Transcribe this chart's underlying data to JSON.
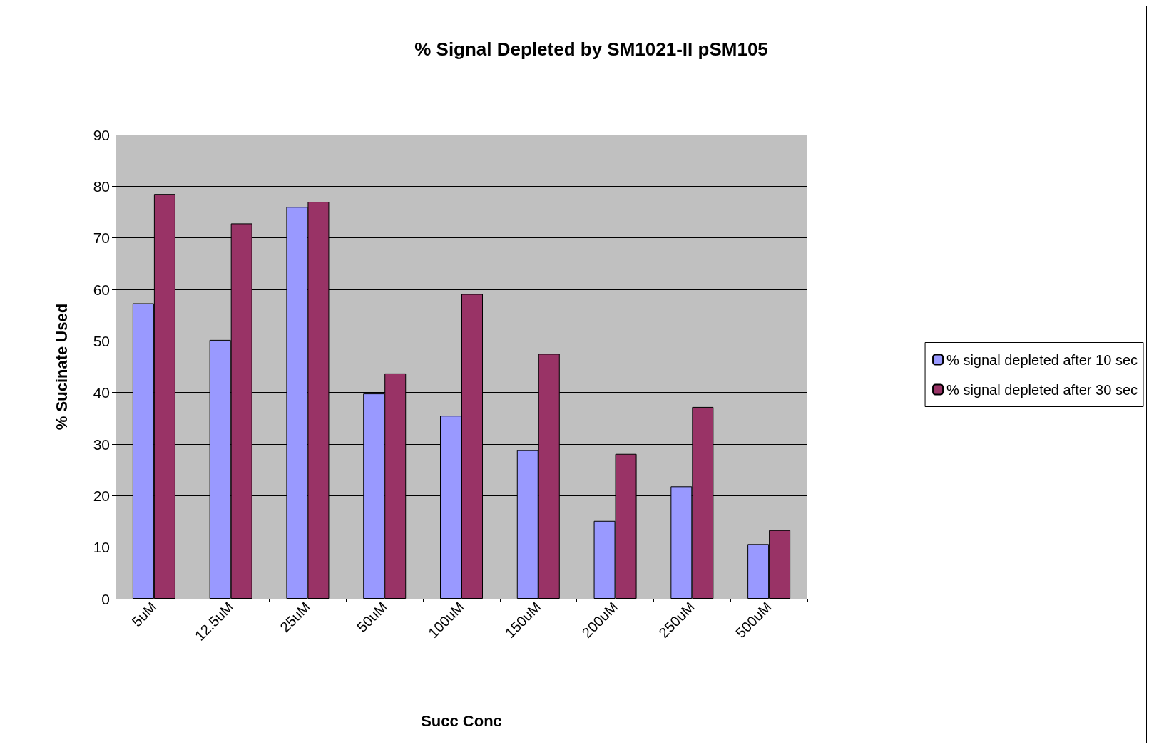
{
  "chart_data": {
    "type": "bar",
    "title": "% Signal Depleted by SM1021-II pSM105",
    "xlabel": "Succ Conc",
    "ylabel": "% Sucinate Used",
    "categories": [
      "5uM",
      "12.5uM",
      "25uM",
      "50uM",
      "100uM",
      "150uM",
      "200uM",
      "250uM",
      "500uM"
    ],
    "series": [
      {
        "name": "% signal depleted after 10 sec",
        "color": "#9999ff",
        "values": [
          57.3,
          50.2,
          76.0,
          39.8,
          35.5,
          28.8,
          15.1,
          21.8,
          10.6
        ]
      },
      {
        "name": "% signal depleted after 30 sec",
        "color": "#993366",
        "values": [
          78.5,
          72.8,
          77.0,
          43.7,
          59.1,
          47.5,
          28.1,
          37.2,
          13.3
        ]
      }
    ],
    "ylim": [
      0,
      90
    ],
    "yticks": [
      0,
      10,
      20,
      30,
      40,
      50,
      60,
      70,
      80,
      90
    ],
    "grid": "y",
    "legend": "right"
  }
}
